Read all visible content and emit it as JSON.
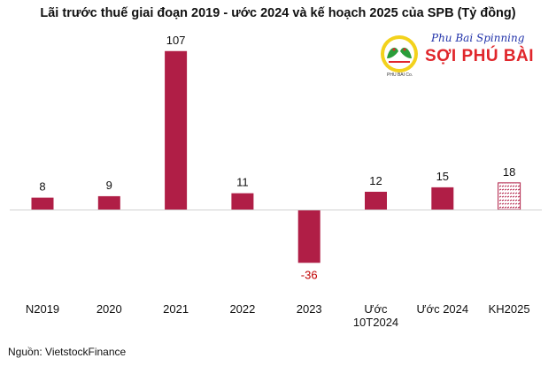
{
  "title": "Lãi trước thuế giai đoạn 2019 - ước 2024 và kế hoạch 2025 của SPB (Tỷ đồng)",
  "source": "Nguồn: VietstockFinance",
  "logo": {
    "tagline": "Phu Bai Spinning",
    "name": "SỢI PHÚ BÀI",
    "sub": "PHU BAI Co."
  },
  "colors": {
    "bar": "#b01e46",
    "negative_label": "#c00000"
  },
  "chart_data": {
    "type": "bar",
    "categories": [
      "N2019",
      "2020",
      "2021",
      "2022",
      "2023",
      "Ước 10T2024",
      "Ước 2024",
      "KH2025"
    ],
    "category_lines": [
      [
        "N2019"
      ],
      [
        "2020"
      ],
      [
        "2021"
      ],
      [
        "2022"
      ],
      [
        "2023"
      ],
      [
        "Ước",
        "10T2024"
      ],
      [
        "Ước 2024"
      ],
      [
        "KH2025"
      ]
    ],
    "values": [
      8,
      9,
      107,
      11,
      -36,
      12,
      15,
      18
    ],
    "data_labels": [
      "8",
      "9",
      "107",
      "11",
      "-36",
      "12",
      "15",
      "18"
    ],
    "hatched": [
      false,
      false,
      false,
      false,
      false,
      false,
      false,
      true
    ],
    "title": "Lãi trước thuế giai đoạn 2019 - ước 2024 và kế hoạch 2025 của SPB (Tỷ đồng)",
    "xlabel": "",
    "ylabel": "",
    "ylim": [
      -40,
      110
    ],
    "grid": false,
    "legend": "none"
  }
}
